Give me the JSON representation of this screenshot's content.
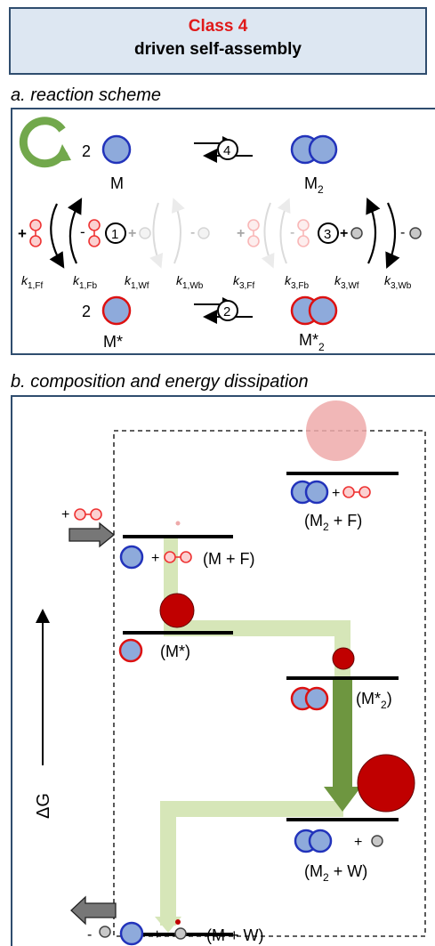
{
  "header": {
    "class_label": "Class 4",
    "subtitle": "driven self-assembly"
  },
  "section_a": {
    "title": "a. reaction scheme",
    "coef_2": "2",
    "monomer": "M",
    "dimer": "M",
    "dimer_sub": "2",
    "activated_monomer": "M*",
    "activated_dimer": "M*",
    "activated_dimer_sub": "2",
    "reaction_1": "1",
    "reaction_2": "2",
    "reaction_3": "3",
    "reaction_4": "4",
    "plus": "+",
    "minus": "-",
    "rate_constants": [
      {
        "k": "k",
        "sub": "1,Ff"
      },
      {
        "k": "k",
        "sub": "1,Fb"
      },
      {
        "k": "k",
        "sub": "1,Wf"
      },
      {
        "k": "k",
        "sub": "1,Wb"
      },
      {
        "k": "k",
        "sub": "3,Ff"
      },
      {
        "k": "k",
        "sub": "3,Fb"
      },
      {
        "k": "k",
        "sub": "3,Wf"
      },
      {
        "k": "k",
        "sub": "3,Wb"
      }
    ]
  },
  "section_b": {
    "title": "b. composition and energy dissipation",
    "axis_label": "ΔG",
    "input_label": "+",
    "output_label": "-",
    "levels": [
      {
        "label": "(M",
        "sub": "2",
        "tail": " + F)"
      },
      {
        "label": "(M + F)"
      },
      {
        "label": "(M*)"
      },
      {
        "label": "(M*",
        "sub": "2",
        "tail": ")"
      },
      {
        "label": "(M",
        "sub": "2",
        "tail": " + W)"
      },
      {
        "label": "(M + W)"
      }
    ]
  },
  "colors": {
    "monomer_fill": "#8eaadb",
    "monomer_stroke": "#2233bb",
    "activated_stroke": "#dd1111",
    "fuel": "#ee3333",
    "waste_fill": "#c8c8c8",
    "population": "#c00000",
    "population_faint": "#eeaaaa",
    "path_light": "#d6e6b8",
    "path_dark": "#6e9640",
    "cycle": "#72a84c"
  }
}
